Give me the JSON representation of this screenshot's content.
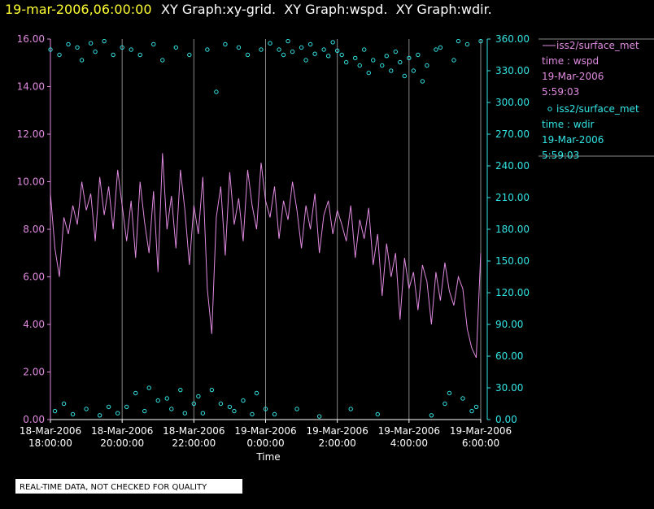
{
  "chart_data": {
    "type": "xy",
    "title_date": "19-mar-2006,06:00:00",
    "title": "XY Graph:xy-grid.  XY Graph:wspd.  XY Graph:wdir.",
    "xlabel": "Time",
    "note": "REAL-TIME DATA, NOT CHECKED FOR QUALITY",
    "grid": true,
    "xlim": [
      "2006-03-18T18:00:00",
      "2006-03-19T06:00:00"
    ],
    "xticks": [
      {
        "value": "2006-03-18T18:00:00",
        "label": [
          "18-Mar-2006",
          "18:00:00"
        ]
      },
      {
        "value": "2006-03-18T20:00:00",
        "label": [
          "18-Mar-2006",
          "20:00:00"
        ]
      },
      {
        "value": "2006-03-18T22:00:00",
        "label": [
          "18-Mar-2006",
          "22:00:00"
        ]
      },
      {
        "value": "2006-03-19T00:00:00",
        "label": [
          "19-Mar-2006",
          "0:00:00"
        ]
      },
      {
        "value": "2006-03-19T02:00:00",
        "label": [
          "19-Mar-2006",
          "2:00:00"
        ]
      },
      {
        "value": "2006-03-19T04:00:00",
        "label": [
          "19-Mar-2006",
          "4:00:00"
        ]
      },
      {
        "value": "2006-03-19T06:00:00",
        "label": [
          "19-Mar-2006",
          "6:00:00"
        ]
      }
    ],
    "ylim": [
      0,
      16
    ],
    "yticks": [
      {
        "value": 0,
        "label": "0.00"
      },
      {
        "value": 2,
        "label": "2.00"
      },
      {
        "value": 4,
        "label": "4.00"
      },
      {
        "value": 6,
        "label": "6.00"
      },
      {
        "value": 8,
        "label": "8.00"
      },
      {
        "value": 10,
        "label": "10.00"
      },
      {
        "value": 12,
        "label": "12.00"
      },
      {
        "value": 14,
        "label": "14.00"
      },
      {
        "value": 16,
        "label": "16.00"
      }
    ],
    "y2lim": [
      0,
      360
    ],
    "y2ticks": [
      {
        "value": 0,
        "label": "0.00"
      },
      {
        "value": 30,
        "label": "30.00"
      },
      {
        "value": 60,
        "label": "60.00"
      },
      {
        "value": 90,
        "label": "90.00"
      },
      {
        "value": 120,
        "label": "120.00"
      },
      {
        "value": 150,
        "label": "150.00"
      },
      {
        "value": 180,
        "label": "180.00"
      },
      {
        "value": 210,
        "label": "210.00"
      },
      {
        "value": 240,
        "label": "240.00"
      },
      {
        "value": 270,
        "label": "270.00"
      },
      {
        "value": 300,
        "label": "300.00"
      },
      {
        "value": 330,
        "label": "330.00"
      },
      {
        "value": 360,
        "label": "360.00"
      }
    ],
    "x": [
      "2006-03-18T18:00:00",
      "2006-03-18T18:07:30",
      "2006-03-18T18:15:00",
      "2006-03-18T18:22:30",
      "2006-03-18T18:30:00",
      "2006-03-18T18:37:30",
      "2006-03-18T18:45:00",
      "2006-03-18T18:52:30",
      "2006-03-18T19:00:00",
      "2006-03-18T19:07:30",
      "2006-03-18T19:15:00",
      "2006-03-18T19:22:30",
      "2006-03-18T19:30:00",
      "2006-03-18T19:37:30",
      "2006-03-18T19:45:00",
      "2006-03-18T19:52:30",
      "2006-03-18T20:00:00",
      "2006-03-18T20:07:30",
      "2006-03-18T20:15:00",
      "2006-03-18T20:22:30",
      "2006-03-18T20:30:00",
      "2006-03-18T20:37:30",
      "2006-03-18T20:45:00",
      "2006-03-18T20:52:30",
      "2006-03-18T21:00:00",
      "2006-03-18T21:07:30",
      "2006-03-18T21:15:00",
      "2006-03-18T21:22:30",
      "2006-03-18T21:30:00",
      "2006-03-18T21:37:30",
      "2006-03-18T21:45:00",
      "2006-03-18T21:52:30",
      "2006-03-18T22:00:00",
      "2006-03-18T22:07:30",
      "2006-03-18T22:15:00",
      "2006-03-18T22:22:30",
      "2006-03-18T22:30:00",
      "2006-03-18T22:37:30",
      "2006-03-18T22:45:00",
      "2006-03-18T22:52:30",
      "2006-03-18T23:00:00",
      "2006-03-18T23:07:30",
      "2006-03-18T23:15:00",
      "2006-03-18T23:22:30",
      "2006-03-18T23:30:00",
      "2006-03-18T23:37:30",
      "2006-03-18T23:45:00",
      "2006-03-18T23:52:30",
      "2006-03-19T00:00:00",
      "2006-03-19T00:07:30",
      "2006-03-19T00:15:00",
      "2006-03-19T00:22:30",
      "2006-03-19T00:30:00",
      "2006-03-19T00:37:30",
      "2006-03-19T00:45:00",
      "2006-03-19T00:52:30",
      "2006-03-19T01:00:00",
      "2006-03-19T01:07:30",
      "2006-03-19T01:15:00",
      "2006-03-19T01:22:30",
      "2006-03-19T01:30:00",
      "2006-03-19T01:37:30",
      "2006-03-19T01:45:00",
      "2006-03-19T01:52:30",
      "2006-03-19T02:00:00",
      "2006-03-19T02:07:30",
      "2006-03-19T02:15:00",
      "2006-03-19T02:22:30",
      "2006-03-19T02:30:00",
      "2006-03-19T02:37:30",
      "2006-03-19T02:45:00",
      "2006-03-19T02:52:30",
      "2006-03-19T03:00:00",
      "2006-03-19T03:07:30",
      "2006-03-19T03:15:00",
      "2006-03-19T03:22:30",
      "2006-03-19T03:30:00",
      "2006-03-19T03:37:30",
      "2006-03-19T03:45:00",
      "2006-03-19T03:52:30",
      "2006-03-19T04:00:00",
      "2006-03-19T04:07:30",
      "2006-03-19T04:15:00",
      "2006-03-19T04:22:30",
      "2006-03-19T04:30:00",
      "2006-03-19T04:37:30",
      "2006-03-19T04:45:00",
      "2006-03-19T04:52:30",
      "2006-03-19T05:00:00",
      "2006-03-19T05:07:30",
      "2006-03-19T05:15:00",
      "2006-03-19T05:22:30",
      "2006-03-19T05:30:00",
      "2006-03-19T05:37:30",
      "2006-03-19T05:45:00",
      "2006-03-19T05:52:30",
      "2006-03-19T06:00:00"
    ],
    "series": [
      {
        "name": "iss2/surface_met",
        "legend_text": [
          "time : wspd",
          "19-Mar-2006",
          "5:59:03"
        ],
        "style": "line",
        "color": "#e08ae0",
        "values": [
          9.5,
          7.2,
          6.0,
          8.5,
          7.8,
          9.0,
          8.2,
          10.0,
          8.8,
          9.5,
          7.5,
          10.2,
          8.6,
          9.8,
          8.0,
          10.5,
          9.0,
          7.5,
          9.2,
          6.8,
          10.0,
          8.3,
          7.0,
          9.6,
          6.2,
          11.2,
          8.0,
          9.4,
          7.2,
          10.5,
          8.8,
          6.5,
          9.0,
          7.8,
          10.2,
          5.5,
          3.6,
          8.5,
          9.8,
          6.9,
          10.4,
          8.2,
          9.3,
          7.5,
          10.5,
          9.0,
          8.0,
          10.8,
          9.2,
          8.5,
          9.8,
          7.6,
          9.2,
          8.4,
          10.0,
          8.8,
          7.2,
          9.0,
          8.0,
          9.5,
          7.0,
          8.6,
          9.2,
          7.8,
          8.8,
          8.2,
          7.5,
          9.0,
          6.8,
          8.4,
          7.6,
          8.9,
          6.5,
          7.8,
          5.2,
          7.4,
          6.0,
          7.0,
          4.2,
          6.8,
          5.5,
          6.2,
          4.6,
          6.5,
          5.8,
          4.0,
          6.2,
          5.0,
          6.6,
          5.4,
          4.8,
          6.0,
          5.5,
          3.8,
          3.0,
          2.6,
          7.0
        ]
      },
      {
        "name": "iss2/surface_met",
        "legend_text": [
          "time : wdir",
          "19-Mar-2006",
          "5:59:03"
        ],
        "style": "scatter",
        "axis": "y2",
        "color": "#33e5e5",
        "values": [
          350,
          8,
          345,
          15,
          355,
          5,
          352,
          340,
          10,
          356,
          348,
          4,
          358,
          12,
          345,
          6,
          352,
          12,
          350,
          25,
          345,
          8,
          30,
          355,
          18,
          340,
          20,
          10,
          352,
          28,
          6,
          345,
          15,
          22,
          6,
          350,
          28,
          310,
          15,
          355,
          12,
          8,
          352,
          18,
          345,
          5,
          25,
          350,
          10,
          356,
          5,
          350,
          345,
          358,
          348,
          10,
          352,
          340,
          355,
          346,
          3,
          350,
          344,
          357,
          349,
          345,
          338,
          10,
          342,
          335,
          350,
          328,
          340,
          5,
          335,
          344,
          330,
          348,
          338,
          325,
          342,
          330,
          345,
          320,
          335,
          4,
          350,
          352,
          15,
          25,
          340,
          358,
          20,
          355,
          8,
          12,
          358
        ]
      }
    ]
  }
}
